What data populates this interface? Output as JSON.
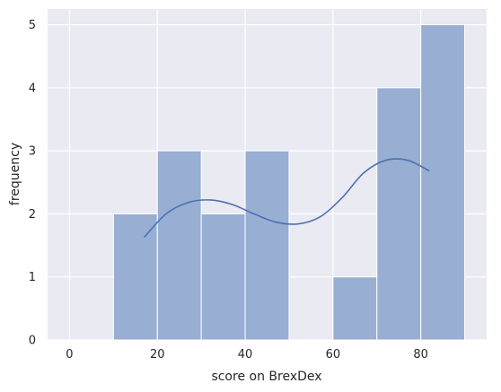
{
  "chart_data": {
    "type": "bar",
    "subtype": "histogram-with-kde",
    "title": "",
    "xlabel": "score on BrexDex",
    "ylabel": "frequency",
    "xlim": [
      -5,
      95
    ],
    "ylim": [
      0,
      5.25
    ],
    "x_ticks": [
      0,
      20,
      40,
      60,
      80
    ],
    "y_ticks": [
      0,
      1,
      2,
      3,
      4,
      5
    ],
    "grid": true,
    "bins": [
      {
        "start": 10,
        "end": 20,
        "count": 2
      },
      {
        "start": 20,
        "end": 30,
        "count": 3
      },
      {
        "start": 30,
        "end": 40,
        "count": 2
      },
      {
        "start": 40,
        "end": 50,
        "count": 3
      },
      {
        "start": 50,
        "end": 60,
        "count": 0
      },
      {
        "start": 60,
        "end": 70,
        "count": 1
      },
      {
        "start": 70,
        "end": 80,
        "count": 4
      },
      {
        "start": 80,
        "end": 90,
        "count": 5
      }
    ],
    "kde": {
      "x": [
        17,
        22,
        27,
        32,
        37,
        42,
        47,
        52,
        57,
        62,
        67,
        72,
        77,
        82
      ],
      "y": [
        1.63,
        2.0,
        2.18,
        2.22,
        2.15,
        2.0,
        1.87,
        1.84,
        1.95,
        2.25,
        2.65,
        2.85,
        2.85,
        2.68
      ]
    },
    "colors": {
      "bar_fill": "#98aed2",
      "bar_edge": "#ffffff",
      "kde_line": "#4c72b0",
      "plot_background": "#eaeaf2",
      "grid": "#ffffff"
    }
  }
}
